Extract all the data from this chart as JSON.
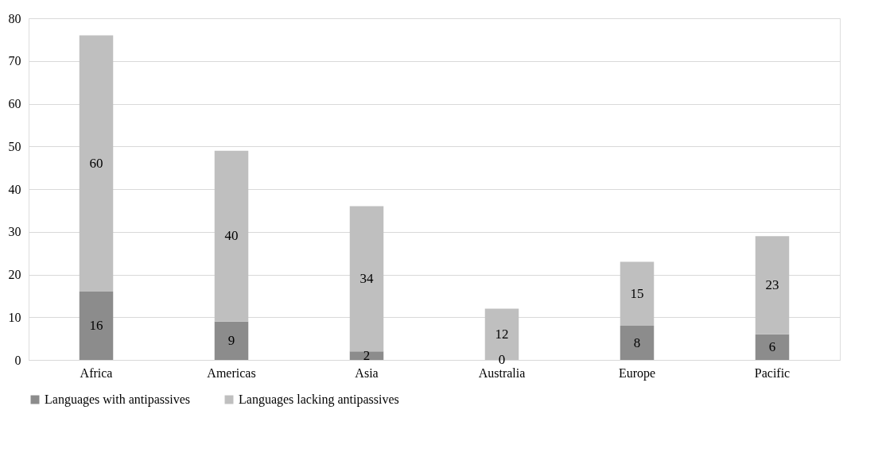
{
  "chart_data": {
    "type": "bar",
    "stacked": true,
    "categories": [
      "Africa",
      "Americas",
      "Asia",
      "Australia",
      "Europe",
      "Pacific"
    ],
    "series": [
      {
        "name": "Languages with antipassives",
        "color": "#8c8c8c",
        "values": [
          16,
          9,
          2,
          0,
          8,
          6
        ]
      },
      {
        "name": "Languages lacking antipassives",
        "color": "#bfbfbf",
        "values": [
          60,
          40,
          34,
          12,
          15,
          23
        ]
      }
    ],
    "ylim": [
      0,
      80
    ],
    "yticks": [
      0,
      10,
      20,
      30,
      40,
      50,
      60,
      70,
      80
    ],
    "grid": "y",
    "legend": "bottom",
    "data_labels": true
  }
}
